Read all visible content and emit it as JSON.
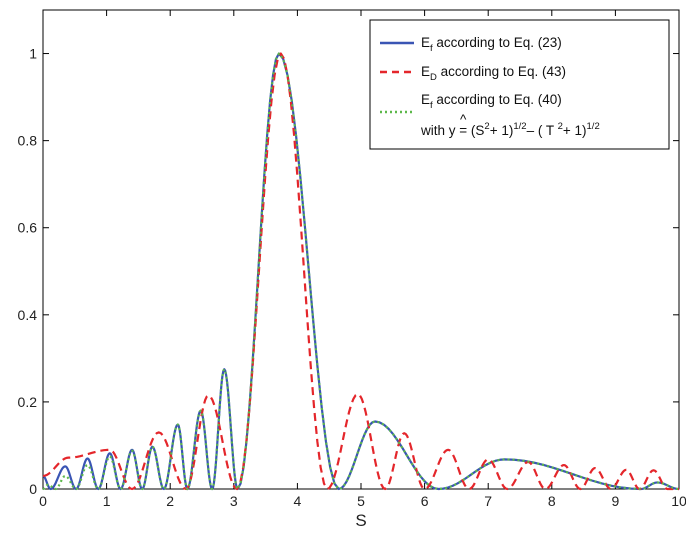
{
  "chart_data": {
    "type": "line",
    "title": "",
    "xlabel": "S",
    "ylabel": "",
    "xlim": [
      0,
      10
    ],
    "ylim": [
      0,
      1.1
    ],
    "xticks": [
      "0",
      "1",
      "2",
      "3",
      "4",
      "5",
      "6",
      "7",
      "8",
      "9",
      "10"
    ],
    "yticks": [
      "0",
      "0.2",
      "0.4",
      "0.6",
      "0.8",
      "1"
    ],
    "grid": false,
    "legend_position": "top-right",
    "legend": {
      "e1": {
        "main": "E",
        "sub": "f",
        "rest": " according to Eq. (23)"
      },
      "e2": {
        "main": "E",
        "sub": "D",
        "rest": " according to Eq. (43)"
      },
      "e3": {
        "main": "E",
        "sub": "f",
        "rest": " according to Eq. (40)"
      },
      "e3_line2": {
        "prefix": "with ",
        "yhat": "y",
        "hat": "^",
        "eq": " = (S",
        "sup1": "2",
        "mid": "+ 1)",
        "sup2": "1/2",
        "mid2": "– ( T ",
        "sup3": "2",
        "mid3": "+ 1)",
        "sup4": "1/2"
      }
    },
    "series": [
      {
        "label_key": "e1",
        "color": "#3a55b4",
        "style": "solid",
        "peaks": [
          [
            0,
            0.03
          ],
          [
            0.35,
            0.052
          ],
          [
            0.7,
            0.07
          ],
          [
            1.05,
            0.082
          ],
          [
            1.4,
            0.09
          ],
          [
            1.72,
            0.097
          ],
          [
            2.12,
            0.148
          ],
          [
            2.48,
            0.18
          ],
          [
            2.85,
            0.275
          ],
          [
            3.71,
            1.0
          ],
          [
            5.22,
            0.155
          ],
          [
            7.26,
            0.068
          ],
          [
            9.66,
            0.015
          ]
        ],
        "zeros": [
          0.12,
          0.52,
          0.87,
          1.22,
          1.56,
          1.9,
          2.27,
          2.66,
          3.06,
          4.65,
          6.22,
          9.4,
          10.0
        ]
      },
      {
        "label_key": "e2",
        "color": "#e4262b",
        "style": "dashed",
        "peaks": [
          [
            0,
            0.03
          ],
          [
            0.4,
            0.072
          ],
          [
            1.05,
            0.09
          ],
          [
            1.82,
            0.13
          ],
          [
            2.6,
            0.215
          ],
          [
            3.74,
            1.0
          ],
          [
            4.95,
            0.218
          ],
          [
            5.68,
            0.128
          ],
          [
            6.37,
            0.09
          ],
          [
            7.0,
            0.068
          ],
          [
            7.63,
            0.062
          ],
          [
            8.19,
            0.055
          ],
          [
            8.68,
            0.048
          ],
          [
            9.17,
            0.044
          ],
          [
            9.6,
            0.043
          ],
          [
            10.0,
            0.0
          ]
        ],
        "zeros": [
          1.4,
          2.25,
          3.05,
          4.47,
          5.38,
          6.0,
          6.7,
          7.3,
          7.9,
          8.45,
          8.93,
          9.38,
          9.82
        ]
      },
      {
        "label_key": "e3",
        "color": "#5cb84a",
        "style": "dotted",
        "peaks": [
          [
            0.08,
            0.01
          ],
          [
            0.35,
            0.03
          ],
          [
            0.7,
            0.055
          ],
          [
            1.05,
            0.075
          ],
          [
            1.4,
            0.088
          ],
          [
            1.72,
            0.097
          ],
          [
            2.12,
            0.148
          ],
          [
            2.48,
            0.18
          ],
          [
            2.85,
            0.275
          ],
          [
            3.71,
            1.0
          ],
          [
            5.22,
            0.155
          ],
          [
            7.26,
            0.068
          ],
          [
            9.66,
            0.015
          ]
        ],
        "zeros": [
          0.0,
          0.2,
          0.52,
          0.87,
          1.22,
          1.56,
          1.9,
          2.27,
          2.66,
          3.06,
          4.65,
          6.22,
          9.4,
          10.0
        ]
      }
    ]
  }
}
